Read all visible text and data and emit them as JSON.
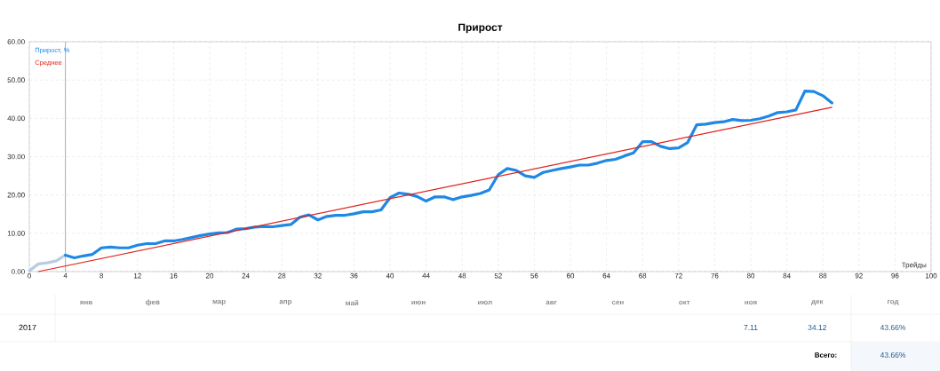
{
  "chart_data": {
    "type": "line",
    "title": "Прирост",
    "xlabel": "Трейды",
    "xlim": [
      0,
      100
    ],
    "xticks": [
      0,
      4,
      8,
      12,
      16,
      20,
      24,
      28,
      32,
      36,
      40,
      44,
      48,
      52,
      56,
      60,
      64,
      68,
      72,
      76,
      80,
      84,
      88,
      92,
      96,
      100
    ],
    "ylim": [
      0,
      60
    ],
    "yticks": [
      {
        "value": 0,
        "label": "0.00"
      },
      {
        "value": 10,
        "label": "10.00"
      },
      {
        "value": 20,
        "label": "20.00"
      },
      {
        "value": 30,
        "label": "30.00"
      },
      {
        "value": 40,
        "label": "40.00"
      },
      {
        "value": 50,
        "label": "50.00"
      },
      {
        "value": 60,
        "label": "60.00"
      }
    ],
    "grid": true,
    "legend": "top left",
    "series": [
      {
        "color": "#b8cce4",
        "x": [
          0,
          1,
          2,
          3,
          4
        ],
        "values": [
          0.2,
          2.0,
          2.3,
          2.8,
          4.3
        ]
      },
      {
        "name": "Прирост, %",
        "color": "#1e88e5",
        "x": [
          4,
          5,
          6,
          7,
          8,
          9,
          10,
          11,
          12,
          13,
          14,
          15,
          16,
          17,
          18,
          19,
          20,
          21,
          22,
          23,
          24,
          25,
          26,
          27,
          28,
          29,
          30,
          31,
          32,
          33,
          34,
          35,
          36,
          37,
          38,
          39,
          40,
          41,
          42,
          43,
          44,
          45,
          46,
          47,
          48,
          49,
          50,
          51,
          52,
          53,
          54,
          55,
          56,
          57,
          58,
          59,
          60,
          61,
          62,
          63,
          64,
          65,
          66,
          67,
          68,
          69,
          70,
          71,
          72,
          73,
          74,
          75,
          76,
          77,
          78,
          79,
          80,
          81,
          82,
          83,
          84,
          85,
          86,
          87,
          88,
          89
        ],
        "values": [
          4.3,
          3.6,
          4.1,
          4.5,
          6.2,
          6.4,
          6.2,
          6.2,
          6.9,
          7.3,
          7.3,
          8.0,
          8.0,
          8.4,
          8.9,
          9.4,
          9.8,
          10.1,
          10.2,
          11.1,
          11.2,
          11.6,
          11.8,
          11.7,
          12.0,
          12.3,
          14.2,
          14.8,
          13.5,
          14.4,
          14.7,
          14.7,
          15.1,
          15.6,
          15.6,
          16.1,
          19.3,
          20.5,
          20.2,
          19.6,
          18.4,
          19.5,
          19.5,
          18.8,
          19.5,
          19.9,
          20.4,
          21.3,
          25.3,
          26.9,
          26.4,
          25.0,
          24.6,
          25.9,
          26.4,
          26.9,
          27.3,
          27.8,
          27.8,
          28.3,
          29.0,
          29.3,
          30.2,
          31.0,
          33.9,
          33.9,
          32.7,
          32.1,
          32.3,
          33.7,
          38.3,
          38.5,
          38.9,
          39.1,
          39.7,
          39.4,
          39.5,
          39.9,
          40.6,
          41.5,
          41.7,
          42.2,
          47.1,
          47.0,
          45.9,
          44.0
        ]
      },
      {
        "name": "Среднее",
        "color": "#e0201b",
        "x": [
          1,
          89
        ],
        "values": [
          0,
          42.9
        ]
      }
    ],
    "ref_lines": [
      {
        "axis": "x",
        "value": 4,
        "color": "#999999"
      }
    ],
    "annotations": [
      "янв",
      "фев",
      "мар",
      "апр",
      "май",
      "июн",
      "июл",
      "авг",
      "сен",
      "окт",
      "ноя",
      "дек",
      "год",
      "2017",
      "7.11",
      "34.12",
      "43.66%",
      "Всего:",
      "43.66%"
    ]
  }
}
